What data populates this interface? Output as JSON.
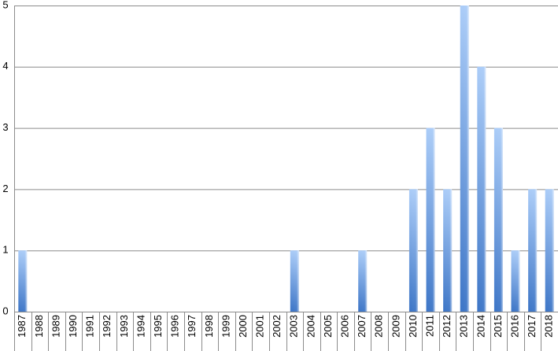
{
  "chart_data": {
    "type": "bar",
    "categories": [
      "1987",
      "1988",
      "1989",
      "1990",
      "1991",
      "1992",
      "1993",
      "1994",
      "1995",
      "1996",
      "1997",
      "1998",
      "1999",
      "2000",
      "2001",
      "2002",
      "2003",
      "2004",
      "2005",
      "2006",
      "2007",
      "2008",
      "2009",
      "2010",
      "2011",
      "2012",
      "2013",
      "2014",
      "2015",
      "2016",
      "2017",
      "2018"
    ],
    "values": [
      1,
      0,
      0,
      0,
      0,
      0,
      0,
      0,
      0,
      0,
      0,
      0,
      0,
      0,
      0,
      0,
      1,
      0,
      0,
      0,
      1,
      0,
      0,
      2,
      3,
      2,
      5,
      4,
      3,
      1,
      2,
      2
    ],
    "color": "#3b74c6",
    "ylim": [
      0,
      5
    ],
    "yticks": [
      0,
      1,
      2,
      3,
      4,
      5
    ],
    "grid": true
  }
}
